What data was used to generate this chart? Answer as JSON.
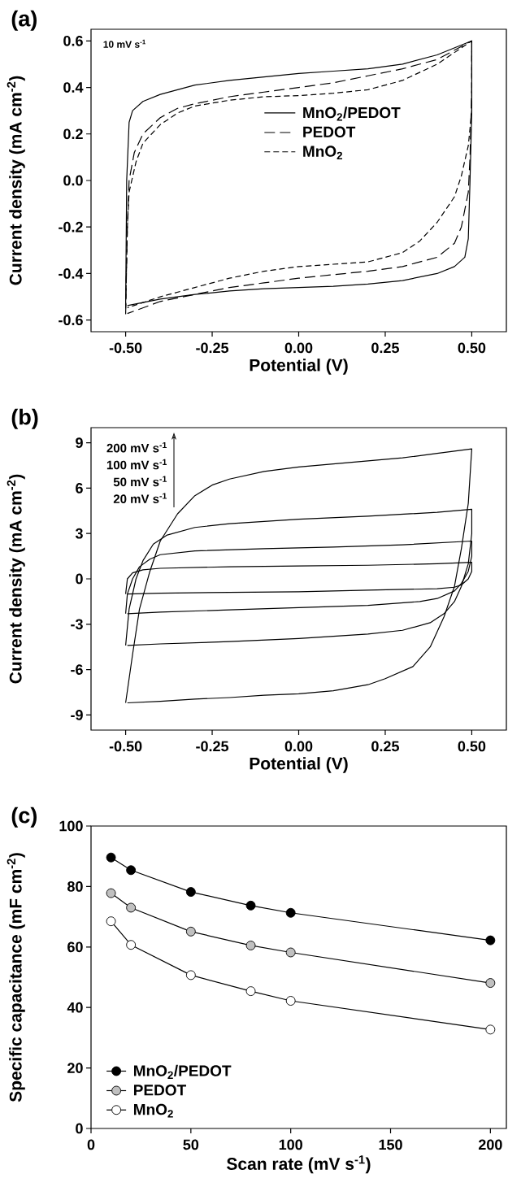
{
  "chart_data": [
    {
      "type": "line",
      "title": "(a)",
      "xlabel": "Potential (V)",
      "ylabel": "Current density (mA cm$^{-2}$)",
      "annotations": [
        "10 mV s$^{-1}$"
      ],
      "xlim": [
        -0.6,
        0.6
      ],
      "ylim": [
        -0.65,
        0.65
      ],
      "xticks": [
        {
          "value": -0.5,
          "label": "-0.50"
        },
        {
          "value": -0.25,
          "label": "-0.25"
        },
        {
          "value": 0,
          "label": "0.00"
        },
        {
          "value": 0.25,
          "label": "0.25"
        },
        {
          "value": 0.5,
          "label": "0.50"
        }
      ],
      "yticks": [
        -0.6,
        -0.4,
        -0.2,
        {
          "value": 0,
          "label": "0.0"
        },
        0.2,
        0.4,
        0.6
      ],
      "legend": "top right",
      "series": [
        {
          "name": "MnO$_{2}$/PEDOT",
          "color": "#000000",
          "line_style": "solid",
          "x": [
            -0.5,
            -0.497,
            -0.49,
            -0.48,
            -0.45,
            -0.4,
            -0.3,
            -0.2,
            -0.1,
            0,
            0.1,
            0.2,
            0.3,
            0.4,
            0.5,
            0.5,
            0.495,
            0.49,
            0.48,
            0.45,
            0.4,
            0.3,
            0.2,
            0.1,
            0,
            -0.1,
            -0.2,
            -0.3,
            -0.4,
            -0.495
          ],
          "values": [
            -0.54,
            0.0,
            0.25,
            0.3,
            0.34,
            0.37,
            0.41,
            0.43,
            0.445,
            0.46,
            0.47,
            0.48,
            0.5,
            0.54,
            0.6,
            0.3,
            0.0,
            -0.25,
            -0.33,
            -0.37,
            -0.4,
            -0.43,
            -0.445,
            -0.455,
            -0.46,
            -0.465,
            -0.475,
            -0.49,
            -0.51,
            -0.538
          ]
        },
        {
          "name": "PEDOT",
          "color": "#000000",
          "line_style": "dashed",
          "x": [
            -0.5,
            -0.495,
            -0.49,
            -0.475,
            -0.45,
            -0.4,
            -0.35,
            -0.3,
            -0.2,
            -0.1,
            0,
            0.1,
            0.2,
            0.3,
            0.4,
            0.5,
            0.5,
            0.495,
            0.49,
            0.47,
            0.45,
            0.4,
            0.3,
            0.2,
            0.1,
            0,
            -0.1,
            -0.2,
            -0.3,
            -0.4,
            -0.495
          ],
          "values": [
            -0.575,
            -0.2,
            0.0,
            0.12,
            0.2,
            0.27,
            0.31,
            0.33,
            0.36,
            0.38,
            0.4,
            0.42,
            0.45,
            0.48,
            0.52,
            0.6,
            0.4,
            0.1,
            -0.05,
            -0.2,
            -0.27,
            -0.33,
            -0.37,
            -0.39,
            -0.405,
            -0.42,
            -0.44,
            -0.46,
            -0.49,
            -0.52,
            -0.572
          ]
        },
        {
          "name": "MnO$_{2}$",
          "color": "#000000",
          "line_style": "dashed",
          "x": [
            -0.5,
            -0.495,
            -0.49,
            -0.47,
            -0.45,
            -0.4,
            -0.35,
            -0.3,
            -0.2,
            -0.1,
            0,
            0.1,
            0.2,
            0.3,
            0.4,
            0.5,
            0.5,
            0.49,
            0.47,
            0.45,
            0.4,
            0.35,
            0.3,
            0.2,
            0.1,
            0,
            -0.1,
            -0.2,
            -0.3,
            -0.4,
            -0.495
          ],
          "values": [
            -0.55,
            -0.2,
            -0.05,
            0.08,
            0.16,
            0.24,
            0.29,
            0.32,
            0.345,
            0.36,
            0.365,
            0.375,
            0.39,
            0.43,
            0.5,
            0.6,
            0.3,
            0.15,
            0.02,
            -0.07,
            -0.18,
            -0.26,
            -0.31,
            -0.35,
            -0.36,
            -0.37,
            -0.39,
            -0.42,
            -0.46,
            -0.5,
            -0.547
          ]
        }
      ]
    },
    {
      "type": "line",
      "title": "(b)",
      "xlabel": "Potential (V)",
      "ylabel": "Current density (mA cm$^{-2}$)",
      "annotations": [
        "200 mV s$^{-1}$",
        "100 mV s$^{-1}$",
        "50 mV s$^{-1}$",
        "20 mV s$^{-1}$"
      ],
      "xlim": [
        -0.6,
        0.6
      ],
      "ylim": [
        -10,
        10
      ],
      "xticks": [
        {
          "value": -0.5,
          "label": "-0.50"
        },
        {
          "value": -0.25,
          "label": "-0.25"
        },
        {
          "value": 0,
          "label": "0.00"
        },
        {
          "value": 0.25,
          "label": "0.25"
        },
        {
          "value": 0.5,
          "label": "0.50"
        }
      ],
      "yticks": [
        -9,
        -6,
        -3,
        0,
        3,
        6,
        9
      ],
      "series": [
        {
          "color": "#000000",
          "x": [
            -0.5,
            -0.495,
            -0.48,
            -0.45,
            -0.4,
            -0.2,
            0,
            0.2,
            0.4,
            0.5,
            0.5,
            0.49,
            0.47,
            0.45,
            0.4,
            0.2,
            0,
            -0.2,
            -0.4,
            -0.495
          ],
          "values": [
            -1.0,
            0.0,
            0.4,
            0.6,
            0.7,
            0.8,
            0.85,
            0.9,
            1.0,
            1.1,
            0.5,
            0.0,
            -0.4,
            -0.55,
            -0.65,
            -0.75,
            -0.85,
            -0.89,
            -0.95,
            -1.0
          ]
        },
        {
          "color": "#000000",
          "x": [
            -0.5,
            -0.495,
            -0.48,
            -0.46,
            -0.43,
            -0.4,
            -0.3,
            -0.1,
            0.1,
            0.3,
            0.5,
            0.5,
            0.49,
            0.47,
            0.45,
            0.4,
            0.35,
            0.2,
            0,
            -0.2,
            -0.4,
            -0.495
          ],
          "values": [
            -2.3,
            -1.0,
            0.0,
            0.8,
            1.3,
            1.6,
            1.85,
            2.0,
            2.1,
            2.25,
            2.5,
            1.5,
            0.5,
            -0.3,
            -0.8,
            -1.3,
            -1.5,
            -1.75,
            -1.9,
            -2.05,
            -2.2,
            -2.3
          ]
        },
        {
          "color": "#000000",
          "x": [
            -0.5,
            -0.49,
            -0.47,
            -0.45,
            -0.42,
            -0.38,
            -0.3,
            -0.2,
            0,
            0.2,
            0.4,
            0.5,
            0.5,
            0.49,
            0.47,
            0.45,
            0.42,
            0.38,
            0.3,
            0.2,
            0,
            -0.2,
            -0.4,
            -0.495
          ],
          "values": [
            -4.4,
            -2.0,
            0.0,
            1.2,
            2.3,
            2.9,
            3.4,
            3.65,
            3.95,
            4.15,
            4.4,
            4.6,
            3.0,
            1.0,
            -0.5,
            -1.5,
            -2.3,
            -2.9,
            -3.4,
            -3.65,
            -3.95,
            -4.15,
            -4.3,
            -4.4
          ]
        },
        {
          "color": "#000000",
          "x": [
            -0.5,
            -0.48,
            -0.46,
            -0.43,
            -0.4,
            -0.35,
            -0.3,
            -0.25,
            -0.2,
            -0.1,
            0,
            0.1,
            0.2,
            0.3,
            0.4,
            0.5,
            0.49,
            0.47,
            0.45,
            0.42,
            0.38,
            0.33,
            0.25,
            0.2,
            0.1,
            0,
            -0.1,
            -0.2,
            -0.3,
            -0.4,
            -0.495
          ],
          "values": [
            -8.2,
            -5.0,
            -2.0,
            0.5,
            2.5,
            4.3,
            5.5,
            6.2,
            6.6,
            7.1,
            7.4,
            7.6,
            7.8,
            8.0,
            8.3,
            8.6,
            5.0,
            2.0,
            -0.5,
            -2.5,
            -4.5,
            -5.8,
            -6.6,
            -7.0,
            -7.4,
            -7.6,
            -7.7,
            -7.85,
            -7.95,
            -8.1,
            -8.2
          ]
        }
      ]
    },
    {
      "type": "line",
      "title": "(c)",
      "xlabel": "Scan rate (mV s$^{-1}$)",
      "ylabel": "Specific capacitance (mF cm$^{-2}$)",
      "x": [
        10,
        20,
        50,
        80,
        100,
        200
      ],
      "xlim": [
        0,
        208
      ],
      "ylim": [
        0,
        100
      ],
      "xticks": [
        0,
        50,
        100,
        150,
        200
      ],
      "yticks": [
        0,
        20,
        40,
        60,
        80,
        100
      ],
      "legend": "bottom left",
      "marker": "circle",
      "series": [
        {
          "name": "MnO$_{2}$/PEDOT",
          "color": "#000000",
          "values": [
            89.6,
            85.4,
            78.2,
            73.7,
            71.3,
            62.2
          ]
        },
        {
          "name": "PEDOT",
          "color": "#c0c0c0",
          "values": [
            77.8,
            73.0,
            65.1,
            60.5,
            58.2,
            48.1
          ]
        },
        {
          "name": "MnO$_{2}$",
          "color": "#ffffff",
          "values": [
            68.5,
            60.7,
            50.7,
            45.4,
            42.2,
            32.7
          ]
        }
      ]
    }
  ]
}
